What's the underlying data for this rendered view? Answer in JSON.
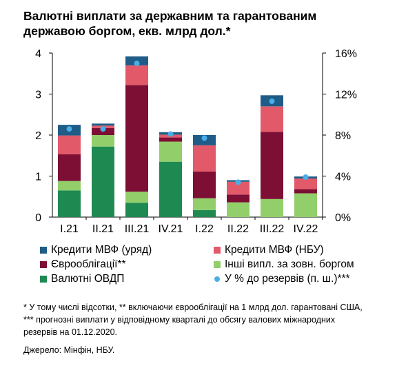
{
  "title": "Валютні виплати за державним та гарантованим державою боргом, екв. млрд дол.*",
  "legend": [
    {
      "label": "Кредити МВФ (уряд)",
      "color": "#1f5c87",
      "kind": "square"
    },
    {
      "label": "Кредити МВФ (НБУ)",
      "color": "#e25a6a",
      "kind": "square"
    },
    {
      "label": "Єврооблігації**",
      "color": "#7d0f35",
      "kind": "square"
    },
    {
      "label": "Інші випл. за зовн. боргом",
      "color": "#92cf6a",
      "kind": "square"
    },
    {
      "label": "Валютні ОВДП",
      "color": "#1e8a52",
      "kind": "square"
    },
    {
      "label": "У % до резервів (п. ш.)***",
      "color": "#49aee8",
      "kind": "dot"
    }
  ],
  "note": "* У тому числі відсотки, ** включаючи єврооблігації на 1 млрд дол. гарантовані США, *** прогнозні виплати у відповідному кварталі до обсягу валових міжнародних резервів на 01.12.2020.",
  "source": "Джерело: Мінфін, НБУ.",
  "chart_data": {
    "type": "bar",
    "stacked": true,
    "categories": [
      "I.21",
      "II.21",
      "III.21",
      "IV.21",
      "I.22",
      "II.22",
      "III.22",
      "IV.22"
    ],
    "series": [
      {
        "name": "Валютні ОВДП",
        "color": "#1e8a52",
        "values": [
          0.65,
          1.72,
          0.35,
          1.35,
          0.17,
          0.0,
          0.0,
          0.0
        ]
      },
      {
        "name": "Інші випл. за зовн. боргом",
        "color": "#92cf6a",
        "values": [
          0.23,
          0.28,
          0.27,
          0.49,
          0.29,
          0.36,
          0.44,
          0.58
        ]
      },
      {
        "name": "Єврооблігації**",
        "color": "#7d0f35",
        "values": [
          0.65,
          0.17,
          2.6,
          0.1,
          0.65,
          0.19,
          1.64,
          0.1
        ]
      },
      {
        "name": "Кредити МВФ (НБУ)",
        "color": "#e25a6a",
        "values": [
          0.46,
          0.06,
          0.48,
          0.07,
          0.64,
          0.31,
          0.62,
          0.26
        ]
      },
      {
        "name": "Кредити МВФ (уряд)",
        "color": "#1f5c87",
        "values": [
          0.26,
          0.05,
          0.22,
          0.06,
          0.25,
          0.04,
          0.27,
          0.05
        ]
      }
    ],
    "line_series": {
      "name": "У % до резервів (п. ш.)***",
      "color": "#49aee8",
      "axis": "right",
      "values": [
        8.6,
        8.6,
        15.0,
        8.1,
        7.7,
        3.4,
        11.3,
        3.9
      ]
    },
    "ylim_left": [
      0,
      4
    ],
    "yticks_left": [
      "0",
      "1",
      "2",
      "3",
      "4"
    ],
    "ylim_right": [
      0,
      16
    ],
    "yticks_right": [
      "0%",
      "4%",
      "8%",
      "12%",
      "16%"
    ],
    "grid": false
  }
}
